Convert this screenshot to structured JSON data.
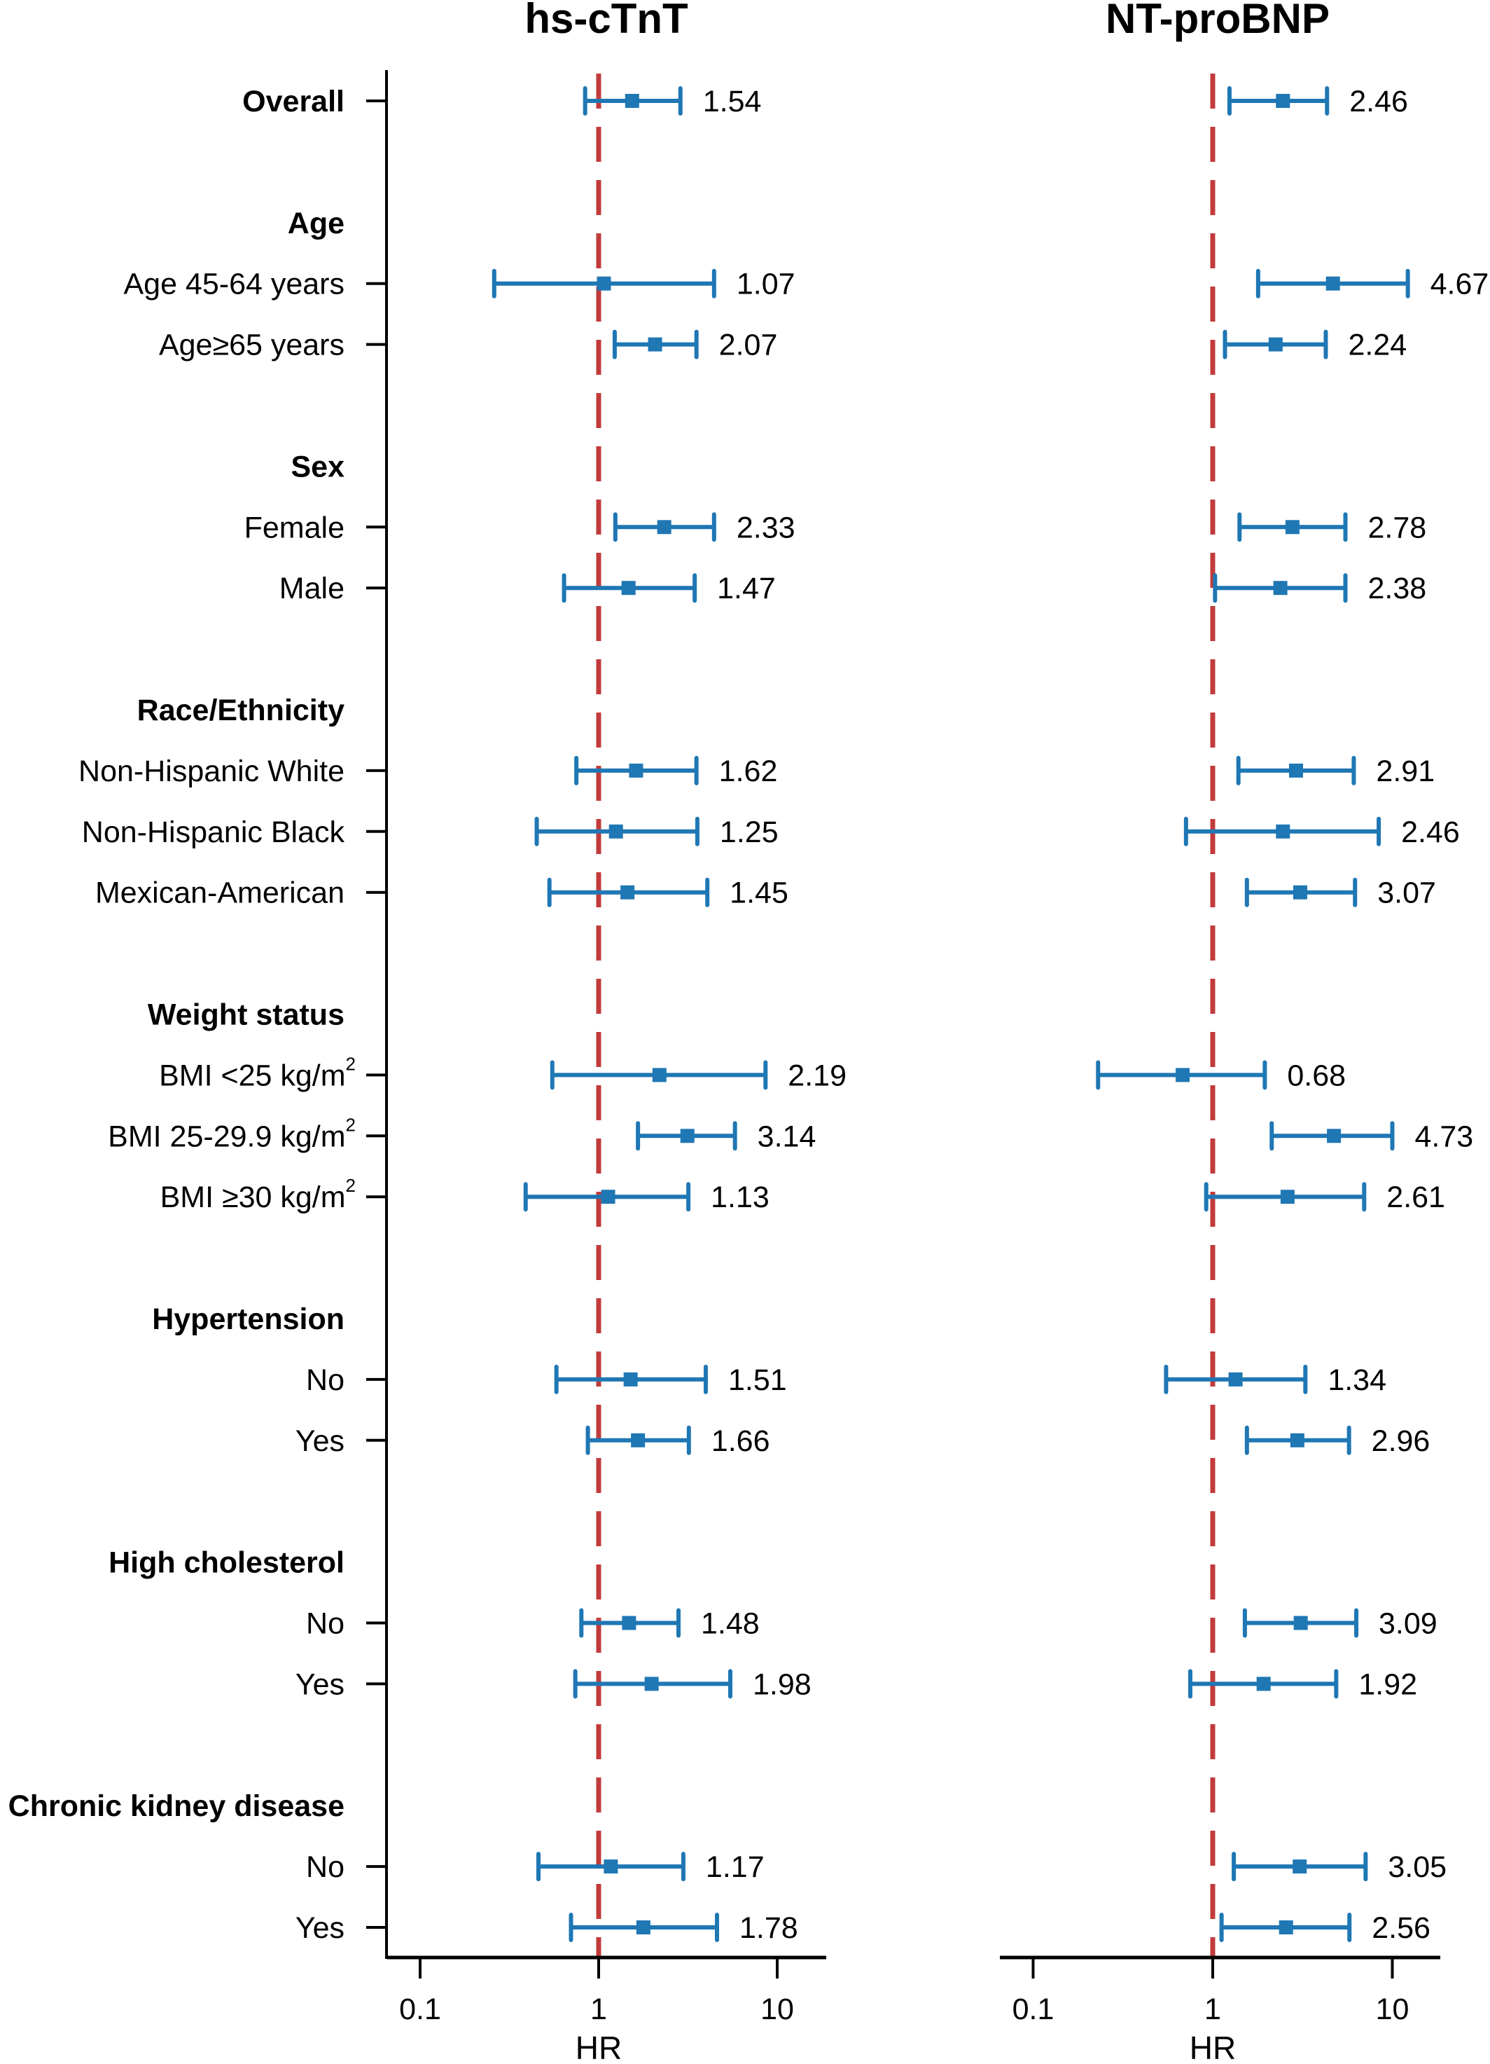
{
  "chart_data": {
    "type": "forest",
    "xscale": "log",
    "xlim": [
      0.065,
      18.8
    ],
    "xticks": [
      0.1,
      1,
      10
    ],
    "xtick_labels": [
      "0.1",
      "1",
      "10"
    ],
    "xlabel": "HR",
    "reference_line": 1,
    "colors": {
      "estimate": "#1f77b4",
      "reference": "#c23b3b",
      "axis": "#000000"
    },
    "rows": [
      {
        "label": "Overall",
        "type": "header-row"
      },
      {
        "label": "Age",
        "type": "header"
      },
      {
        "label": "Age 45-64 years",
        "type": "row"
      },
      {
        "label": "Age≥65 years",
        "type": "row"
      },
      {
        "label": "Sex",
        "type": "header"
      },
      {
        "label": "Female",
        "type": "row"
      },
      {
        "label": "Male",
        "type": "row"
      },
      {
        "label": "Race/Ethnicity",
        "type": "header"
      },
      {
        "label": "Non-Hispanic White",
        "type": "row"
      },
      {
        "label": "Non-Hispanic Black",
        "type": "row"
      },
      {
        "label": "Mexican-American",
        "type": "row"
      },
      {
        "label": "Weight status",
        "type": "header"
      },
      {
        "label": "BMI <25 kg/m",
        "sup": "2",
        "type": "row"
      },
      {
        "label": "BMI 25-29.9 kg/m",
        "sup": "2",
        "type": "row"
      },
      {
        "label": "BMI ≥30 kg/m",
        "sup": "2",
        "type": "row"
      },
      {
        "label": "Hypertension",
        "type": "header"
      },
      {
        "label": "No",
        "type": "row"
      },
      {
        "label": "Yes",
        "type": "row"
      },
      {
        "label": "High cholesterol",
        "type": "header"
      },
      {
        "label": "No",
        "type": "row"
      },
      {
        "label": "Yes",
        "type": "row"
      },
      {
        "label": "Chronic kidney disease",
        "type": "header"
      },
      {
        "label": "No",
        "type": "row"
      },
      {
        "label": "Yes",
        "type": "row"
      }
    ],
    "panels": [
      {
        "title": "hs-cTnT",
        "series": [
          {
            "hr": 1.54,
            "lower": 0.84,
            "upper": 2.87,
            "label": "1.54"
          },
          null,
          {
            "hr": 1.07,
            "lower": 0.26,
            "upper": 4.43,
            "label": "1.07"
          },
          {
            "hr": 2.07,
            "lower": 1.23,
            "upper": 3.53,
            "label": "2.07"
          },
          null,
          {
            "hr": 2.33,
            "lower": 1.24,
            "upper": 4.43,
            "label": "2.33"
          },
          {
            "hr": 1.47,
            "lower": 0.64,
            "upper": 3.45,
            "label": "1.47"
          },
          null,
          {
            "hr": 1.62,
            "lower": 0.75,
            "upper": 3.53,
            "label": "1.62"
          },
          {
            "hr": 1.25,
            "lower": 0.45,
            "upper": 3.57,
            "label": "1.25"
          },
          {
            "hr": 1.45,
            "lower": 0.53,
            "upper": 4.06,
            "label": "1.45"
          },
          null,
          {
            "hr": 2.19,
            "lower": 0.55,
            "upper": 8.6,
            "label": "2.19"
          },
          {
            "hr": 3.14,
            "lower": 1.66,
            "upper": 5.8,
            "label": "3.14"
          },
          {
            "hr": 1.13,
            "lower": 0.39,
            "upper": 3.18,
            "label": "1.13"
          },
          null,
          {
            "hr": 1.51,
            "lower": 0.58,
            "upper": 3.98,
            "label": "1.51"
          },
          {
            "hr": 1.66,
            "lower": 0.87,
            "upper": 3.2,
            "label": "1.66"
          },
          null,
          {
            "hr": 1.48,
            "lower": 0.8,
            "upper": 2.8,
            "label": "1.48"
          },
          {
            "hr": 1.98,
            "lower": 0.74,
            "upper": 5.46,
            "label": "1.98"
          },
          null,
          {
            "hr": 1.17,
            "lower": 0.46,
            "upper": 2.98,
            "label": "1.17"
          },
          {
            "hr": 1.78,
            "lower": 0.7,
            "upper": 4.6,
            "label": "1.78"
          }
        ]
      },
      {
        "title": "NT-proBNP",
        "series": [
          {
            "hr": 2.46,
            "lower": 1.24,
            "upper": 4.33,
            "label": "2.46"
          },
          null,
          {
            "hr": 4.67,
            "lower": 1.79,
            "upper": 12.2,
            "label": "4.67"
          },
          {
            "hr": 2.24,
            "lower": 1.17,
            "upper": 4.26,
            "label": "2.24"
          },
          null,
          {
            "hr": 2.78,
            "lower": 1.41,
            "upper": 5.48,
            "label": "2.78"
          },
          {
            "hr": 2.38,
            "lower": 1.03,
            "upper": 5.48,
            "label": "2.38"
          },
          null,
          {
            "hr": 2.91,
            "lower": 1.39,
            "upper": 6.1,
            "label": "2.91"
          },
          {
            "hr": 2.46,
            "lower": 0.71,
            "upper": 8.4,
            "label": "2.46"
          },
          {
            "hr": 3.07,
            "lower": 1.55,
            "upper": 6.2,
            "label": "3.07"
          },
          null,
          {
            "hr": 0.68,
            "lower": 0.23,
            "upper": 1.95,
            "label": "0.68"
          },
          {
            "hr": 4.73,
            "lower": 2.13,
            "upper": 10.0,
            "label": "4.73"
          },
          {
            "hr": 2.61,
            "lower": 0.92,
            "upper": 6.97,
            "label": "2.61"
          },
          null,
          {
            "hr": 1.34,
            "lower": 0.55,
            "upper": 3.28,
            "label": "1.34"
          },
          {
            "hr": 2.96,
            "lower": 1.55,
            "upper": 5.74,
            "label": "2.96"
          },
          null,
          {
            "hr": 3.09,
            "lower": 1.51,
            "upper": 6.3,
            "label": "3.09"
          },
          {
            "hr": 1.92,
            "lower": 0.75,
            "upper": 4.87,
            "label": "1.92"
          },
          null,
          {
            "hr": 3.05,
            "lower": 1.31,
            "upper": 7.1,
            "label": "3.05"
          },
          {
            "hr": 2.56,
            "lower": 1.12,
            "upper": 5.77,
            "label": "2.56"
          }
        ]
      }
    ]
  }
}
